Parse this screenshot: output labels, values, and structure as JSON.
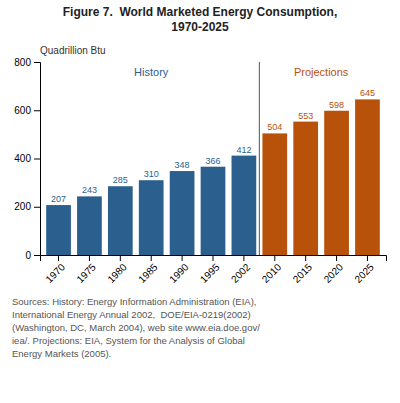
{
  "chart_data": {
    "type": "bar",
    "title": "Figure 7.  World Marketed Energy Consumption,",
    "subtitle": "1970-2025",
    "ylabel": "Quadrillion Btu",
    "categories": [
      "1970",
      "1975",
      "1980",
      "1985",
      "1990",
      "1995",
      "2002",
      "2010",
      "2015",
      "2020",
      "2025"
    ],
    "series": [
      {
        "name": "History",
        "color": "#2B5F8E",
        "values": [
          207,
          243,
          285,
          310,
          348,
          366,
          412,
          null,
          null,
          null,
          null
        ]
      },
      {
        "name": "Projections",
        "color": "#B8520A",
        "values": [
          null,
          null,
          null,
          null,
          null,
          null,
          null,
          504,
          553,
          598,
          645
        ]
      }
    ],
    "ylim": [
      0,
      800
    ],
    "yticks": [
      0,
      200,
      400,
      600,
      800
    ],
    "grid": false,
    "data_labels": true,
    "annotations": [
      "Sources: History: Energy Information Administration (EIA),",
      "International Energy Annual 2002,  DOE/EIA-0219(2002)",
      "(Washington, DC, March 2004), web site www.eia.doe.gov/",
      "iea/. Projections: EIA, System for the Analysis of Global",
      "Energy Markets (2005)."
    ]
  }
}
